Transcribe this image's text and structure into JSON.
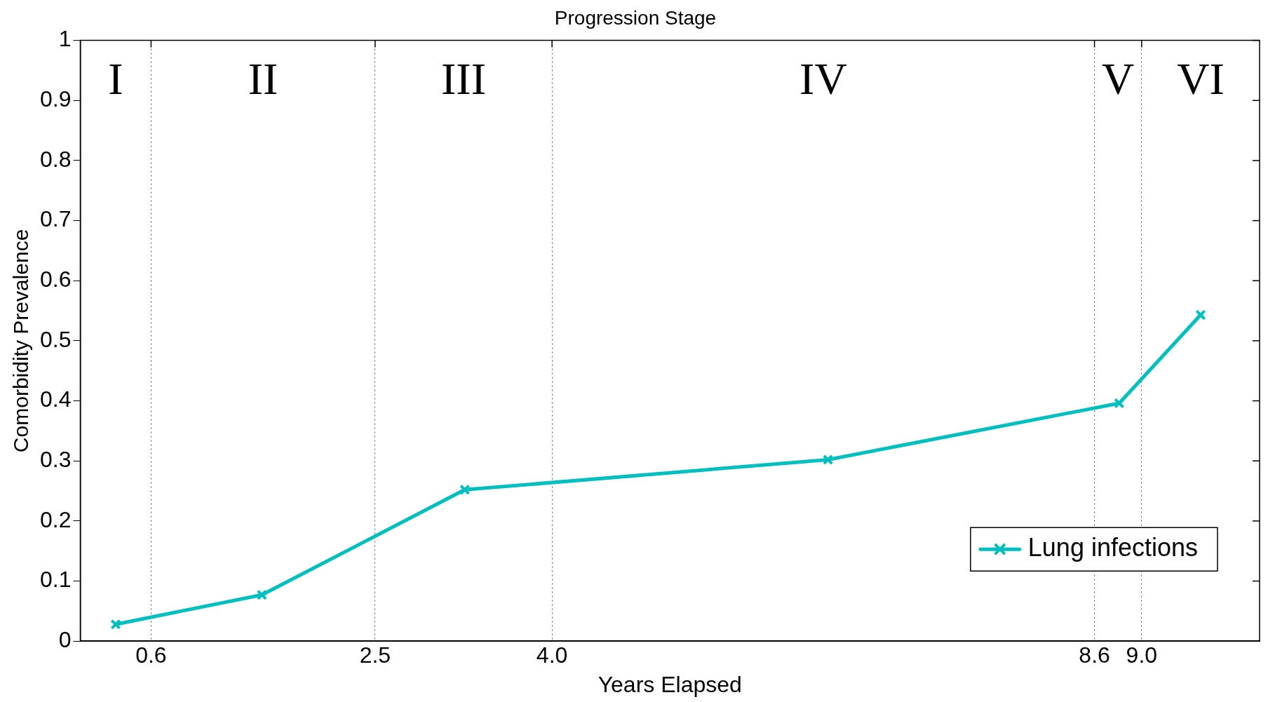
{
  "chart_data": {
    "type": "line",
    "title": "Progression Stage",
    "xlabel": "Years Elapsed",
    "ylabel": "Comorbidity Prevalence",
    "x": [
      0.3,
      1.54,
      3.26,
      6.34,
      8.81,
      9.5
    ],
    "series": [
      {
        "name": "Lung infections",
        "color": "#00bfbf",
        "values": [
          0.028,
          0.077,
          0.252,
          0.302,
          0.396,
          0.543
        ]
      }
    ],
    "xlim": [
      0,
      10
    ],
    "xticks": [
      0.6,
      2.5,
      {
        "value": 4,
        "label": "4.0"
      },
      8.6,
      {
        "value": 9,
        "label": "9.0"
      }
    ],
    "ylim": [
      0,
      1
    ],
    "yticks": [
      0,
      0.1,
      0.2,
      0.3,
      0.4,
      0.5,
      0.6,
      0.7,
      0.8,
      0.9,
      1
    ],
    "grid": "x",
    "legend": "bottom right",
    "marker": "cross",
    "line_style": "solid",
    "annotations": [
      "I",
      "II",
      "III",
      "IV",
      "V",
      "VI"
    ]
  }
}
